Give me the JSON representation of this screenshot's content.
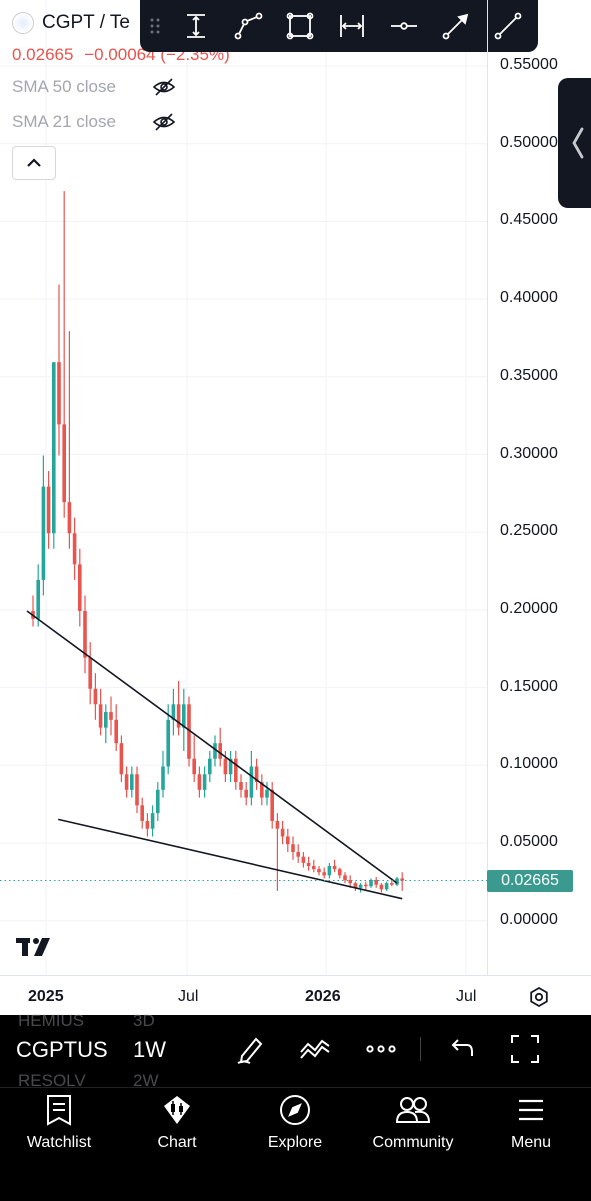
{
  "symbol": {
    "title": "CGPT / Te",
    "last_price": "0.02665",
    "change": "−0.00064 (−2.35%)"
  },
  "indicators": [
    {
      "label": "SMA 50 close"
    },
    {
      "label": "SMA 21 close"
    }
  ],
  "price_axis": [
    "0.55000",
    "0.50000",
    "0.45000",
    "0.40000",
    "0.35000",
    "0.30000",
    "0.25000",
    "0.20000",
    "0.15000",
    "0.10000",
    "0.05000",
    "0.00000"
  ],
  "time_axis": [
    {
      "label": "2025",
      "bold": true
    },
    {
      "label": "Jul",
      "bold": false
    },
    {
      "label": "2026",
      "bold": true
    },
    {
      "label": "Jul",
      "bold": false
    }
  ],
  "ghost_rows": [
    {
      "left": "HEMIUS",
      "right": "3D"
    },
    {
      "left": "RESOLV",
      "right": "2W"
    }
  ],
  "bottom_toolbar": {
    "symbol": "CGPTUS",
    "interval": "1W"
  },
  "drawing_tools": [
    "grip-icon",
    "vertical-range-icon",
    "path-icon",
    "rectangle-icon",
    "date-range-icon",
    "horizontal-line-icon",
    "arrow-icon",
    "trend-line-icon"
  ],
  "nav": [
    {
      "label": "Watchlist",
      "icon": "watchlist-icon"
    },
    {
      "label": "Chart",
      "icon": "chart-icon"
    },
    {
      "label": "Explore",
      "icon": "compass-icon"
    },
    {
      "label": "Community",
      "icon": "community-icon"
    },
    {
      "label": "Menu",
      "icon": "menu-icon"
    }
  ],
  "colors": {
    "up": "#26a69a",
    "down": "#e8544e",
    "last_price_bg": "#3a9a8f",
    "toolbar_bg": "#131722"
  },
  "chart_data": {
    "type": "candlestick",
    "interval": "1W",
    "ylim": [
      0,
      0.57
    ],
    "last_price": 0.02665,
    "grid": true,
    "candles": [
      [
        0.2,
        0.21,
        0.19,
        0.195
      ],
      [
        0.195,
        0.23,
        0.19,
        0.22
      ],
      [
        0.22,
        0.3,
        0.21,
        0.28
      ],
      [
        0.28,
        0.29,
        0.24,
        0.25
      ],
      [
        0.25,
        0.36,
        0.24,
        0.36
      ],
      [
        0.36,
        0.41,
        0.3,
        0.32
      ],
      [
        0.32,
        0.47,
        0.26,
        0.27
      ],
      [
        0.27,
        0.38,
        0.24,
        0.25
      ],
      [
        0.25,
        0.26,
        0.22,
        0.23
      ],
      [
        0.23,
        0.24,
        0.19,
        0.2
      ],
      [
        0.2,
        0.21,
        0.16,
        0.17
      ],
      [
        0.17,
        0.18,
        0.14,
        0.15
      ],
      [
        0.15,
        0.16,
        0.13,
        0.14
      ],
      [
        0.14,
        0.15,
        0.12,
        0.125
      ],
      [
        0.125,
        0.14,
        0.115,
        0.135
      ],
      [
        0.135,
        0.145,
        0.12,
        0.13
      ],
      [
        0.13,
        0.14,
        0.11,
        0.115
      ],
      [
        0.115,
        0.12,
        0.09,
        0.095
      ],
      [
        0.095,
        0.1,
        0.08,
        0.085
      ],
      [
        0.085,
        0.1,
        0.08,
        0.095
      ],
      [
        0.095,
        0.1,
        0.07,
        0.075
      ],
      [
        0.075,
        0.08,
        0.06,
        0.065
      ],
      [
        0.065,
        0.07,
        0.055,
        0.06
      ],
      [
        0.06,
        0.075,
        0.055,
        0.07
      ],
      [
        0.07,
        0.09,
        0.065,
        0.085
      ],
      [
        0.085,
        0.11,
        0.08,
        0.1
      ],
      [
        0.1,
        0.14,
        0.095,
        0.13
      ],
      [
        0.13,
        0.15,
        0.12,
        0.14
      ],
      [
        0.14,
        0.155,
        0.12,
        0.125
      ],
      [
        0.125,
        0.15,
        0.11,
        0.14
      ],
      [
        0.14,
        0.145,
        0.1,
        0.105
      ],
      [
        0.105,
        0.12,
        0.09,
        0.095
      ],
      [
        0.095,
        0.1,
        0.08,
        0.085
      ],
      [
        0.085,
        0.1,
        0.08,
        0.095
      ],
      [
        0.095,
        0.11,
        0.09,
        0.105
      ],
      [
        0.105,
        0.12,
        0.1,
        0.115
      ],
      [
        0.115,
        0.125,
        0.1,
        0.105
      ],
      [
        0.105,
        0.11,
        0.09,
        0.095
      ],
      [
        0.095,
        0.11,
        0.09,
        0.105
      ],
      [
        0.105,
        0.11,
        0.085,
        0.09
      ],
      [
        0.09,
        0.095,
        0.08,
        0.085
      ],
      [
        0.085,
        0.09,
        0.075,
        0.08
      ],
      [
        0.08,
        0.11,
        0.075,
        0.1
      ],
      [
        0.1,
        0.105,
        0.085,
        0.09
      ],
      [
        0.09,
        0.095,
        0.075,
        0.08
      ],
      [
        0.08,
        0.09,
        0.075,
        0.085
      ],
      [
        0.085,
        0.09,
        0.06,
        0.065
      ],
      [
        0.065,
        0.07,
        0.02,
        0.06
      ],
      [
        0.06,
        0.065,
        0.05,
        0.055
      ],
      [
        0.055,
        0.06,
        0.045,
        0.05
      ],
      [
        0.05,
        0.055,
        0.04,
        0.045
      ],
      [
        0.045,
        0.05,
        0.038,
        0.042
      ],
      [
        0.042,
        0.045,
        0.035,
        0.038
      ],
      [
        0.038,
        0.042,
        0.033,
        0.036
      ],
      [
        0.036,
        0.04,
        0.032,
        0.034
      ],
      [
        0.034,
        0.036,
        0.03,
        0.032
      ],
      [
        0.032,
        0.035,
        0.028,
        0.03
      ],
      [
        0.03,
        0.038,
        0.028,
        0.036
      ],
      [
        0.036,
        0.04,
        0.032,
        0.034
      ],
      [
        0.034,
        0.035,
        0.028,
        0.03
      ],
      [
        0.03,
        0.032,
        0.025,
        0.027
      ],
      [
        0.027,
        0.03,
        0.022,
        0.025
      ],
      [
        0.025,
        0.026,
        0.02,
        0.022
      ],
      [
        0.022,
        0.025,
        0.019,
        0.024
      ],
      [
        0.024,
        0.026,
        0.021,
        0.023
      ],
      [
        0.023,
        0.028,
        0.022,
        0.027
      ],
      [
        0.027,
        0.029,
        0.022,
        0.024
      ],
      [
        0.024,
        0.025,
        0.019,
        0.021
      ],
      [
        0.021,
        0.026,
        0.02,
        0.025
      ],
      [
        0.025,
        0.028,
        0.023,
        0.024
      ],
      [
        0.024,
        0.029,
        0.023,
        0.028
      ],
      [
        0.028,
        0.032,
        0.02,
        0.02665
      ]
    ],
    "trendlines": [
      {
        "name": "upper",
        "from": [
          0,
          0.2
        ],
        "to": [
          70,
          0.025
        ]
      },
      {
        "name": "lower",
        "from": [
          6,
          0.066
        ],
        "to": [
          71,
          0.015
        ]
      }
    ]
  }
}
